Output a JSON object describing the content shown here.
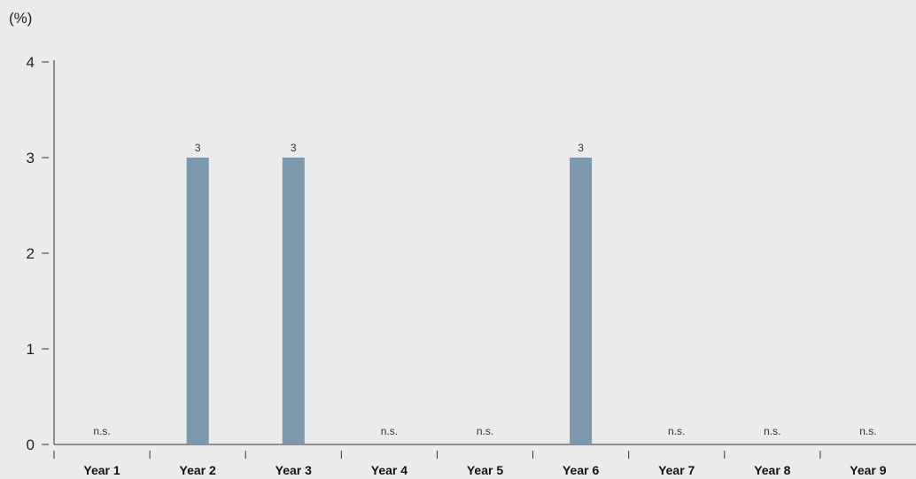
{
  "chart_data": {
    "type": "bar",
    "unit_label": "(%)",
    "categories": [
      "Year 1",
      "Year 2",
      "Year 3",
      "Year 4",
      "Year 5",
      "Year 6",
      "Year 7",
      "Year 8",
      "Year 9"
    ],
    "values": [
      null,
      3,
      3,
      null,
      null,
      3,
      null,
      null,
      null
    ],
    "data_labels": [
      "n.s.",
      "3",
      "3",
      "n.s.",
      "n.s.",
      "3",
      "n.s.",
      "n.s.",
      "n.s."
    ],
    "ylim": [
      0,
      4
    ],
    "yticks": [
      "0",
      "1",
      "2",
      "3",
      "4"
    ],
    "grid": false,
    "legend": "none",
    "colors": {
      "bar": "#7d98aa",
      "background": "#ebebeb",
      "axis": "#333333"
    }
  }
}
